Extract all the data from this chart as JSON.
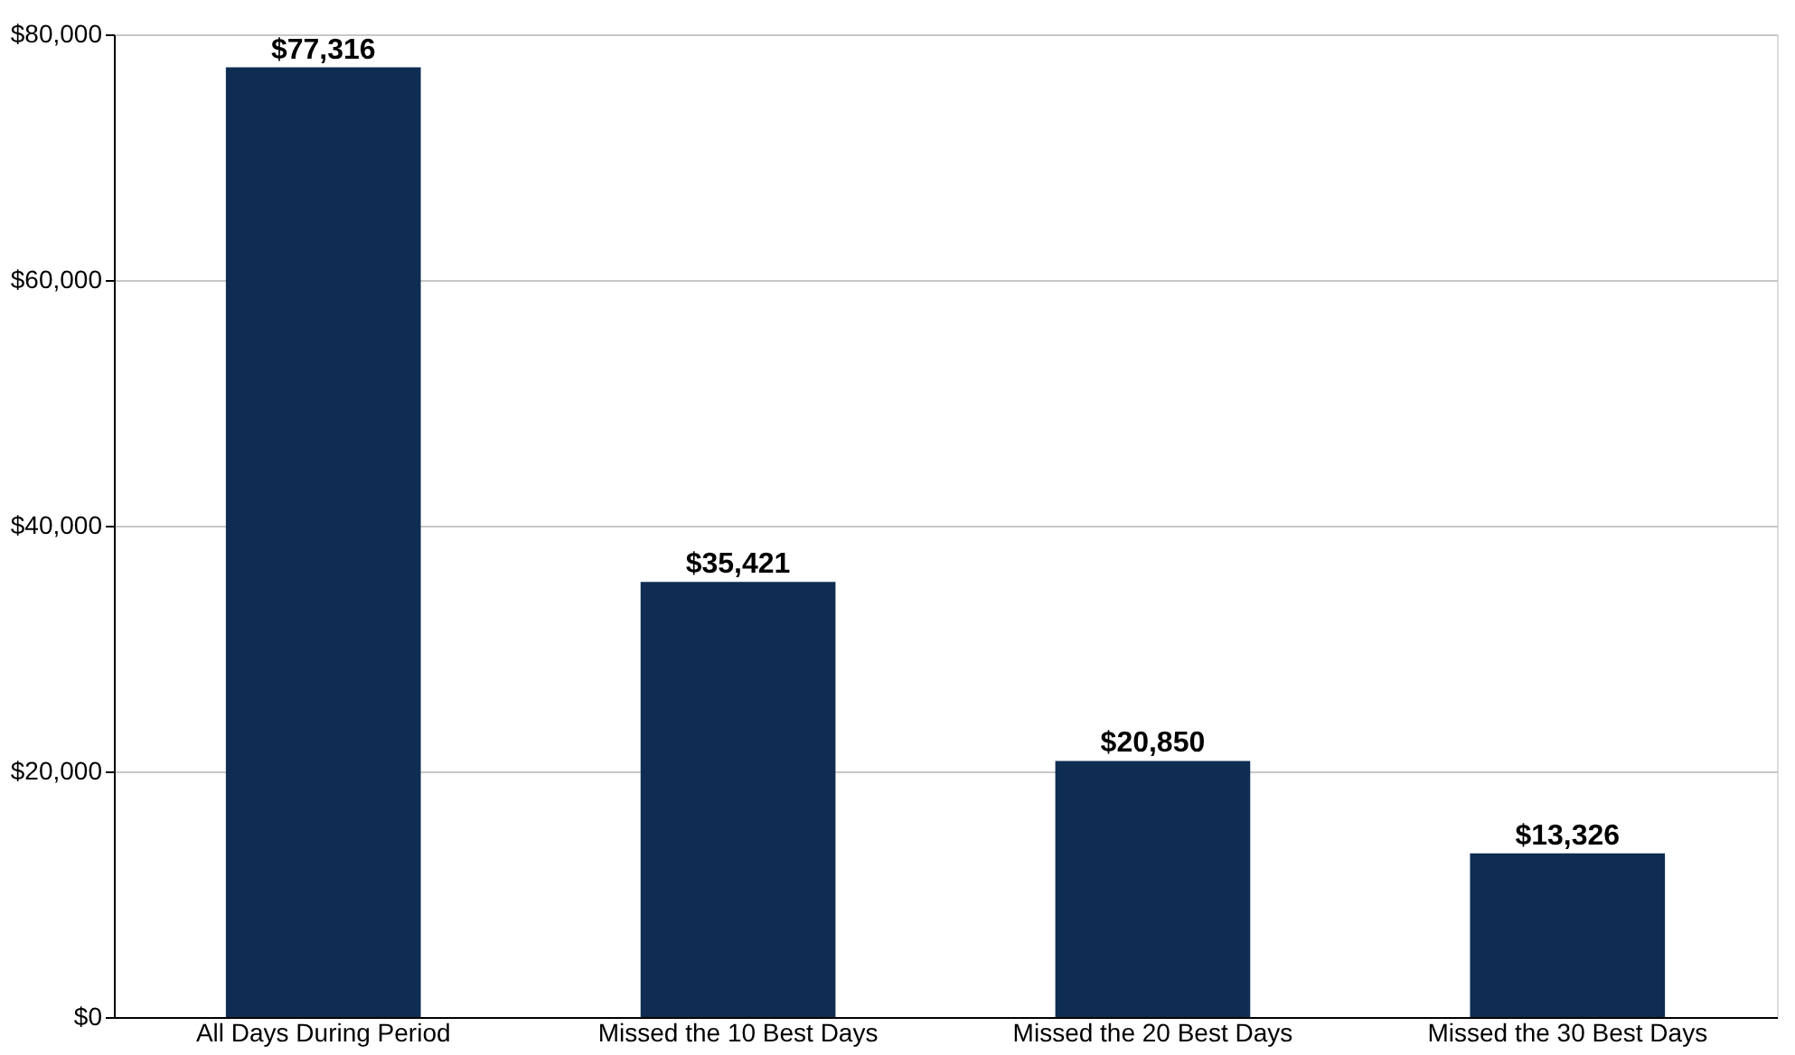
{
  "chart_data": {
    "type": "bar",
    "categories": [
      "All Days During Period",
      "Missed the 10 Best Days",
      "Missed the 20 Best Days",
      "Missed the 30 Best Days"
    ],
    "values": [
      77316,
      35421,
      20850,
      13326
    ],
    "value_labels": [
      "$77,316",
      "$35,421",
      "$20,850",
      "$13,326"
    ],
    "color": "#0f2d52",
    "ylim": [
      0,
      80000
    ],
    "yticks": [
      {
        "value": 0,
        "label": "$0"
      },
      {
        "value": 20000,
        "label": "$20,000"
      },
      {
        "value": 40000,
        "label": "$40,000"
      },
      {
        "value": 60000,
        "label": "$60,000"
      },
      {
        "value": 80000,
        "label": "$80,000"
      }
    ],
    "grid": "y"
  }
}
